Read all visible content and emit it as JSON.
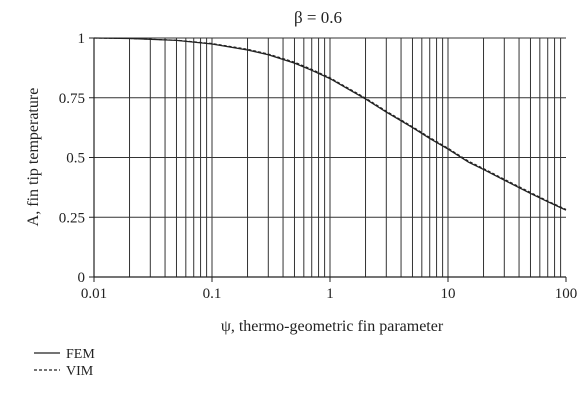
{
  "chart_data": {
    "type": "line",
    "title": "β = 0.6",
    "xlabel": "ψ, thermo-geometric fin parameter",
    "ylabel": "A, fin tip temperature",
    "x_scale": "log",
    "xlim": [
      0.01,
      100
    ],
    "ylim": [
      0,
      1
    ],
    "x_tick_labels": [
      "0.01",
      "0.1",
      "1",
      "10",
      "100"
    ],
    "y_tick_labels": [
      "0",
      "0.25",
      "0.5",
      "0.75",
      "1"
    ],
    "grid": true,
    "legend_position": "bottom-left",
    "series": [
      {
        "name": "FEM",
        "style": "solid",
        "color": "#222222",
        "x": [
          0.01,
          0.02,
          0.05,
          0.1,
          0.2,
          0.3,
          0.5,
          0.7,
          1,
          1.5,
          2,
          3,
          5,
          7,
          10,
          15,
          20,
          30,
          50,
          70,
          100
        ],
        "y": [
          1.0,
          0.998,
          0.99,
          0.975,
          0.95,
          0.93,
          0.895,
          0.865,
          0.83,
          0.78,
          0.745,
          0.69,
          0.625,
          0.58,
          0.535,
          0.48,
          0.45,
          0.405,
          0.35,
          0.315,
          0.28
        ]
      },
      {
        "name": "VIM",
        "style": "dashed",
        "color": "#222222",
        "x": [
          0.01,
          0.02,
          0.05,
          0.1,
          0.2,
          0.3,
          0.5,
          0.7,
          1,
          1.5,
          2,
          3,
          5,
          7,
          10,
          15,
          20,
          30,
          50,
          70,
          100
        ],
        "y": [
          1.0,
          0.998,
          0.991,
          0.977,
          0.953,
          0.933,
          0.899,
          0.869,
          0.834,
          0.784,
          0.749,
          0.694,
          0.629,
          0.584,
          0.539,
          0.484,
          0.454,
          0.409,
          0.354,
          0.318,
          0.283
        ]
      }
    ]
  }
}
